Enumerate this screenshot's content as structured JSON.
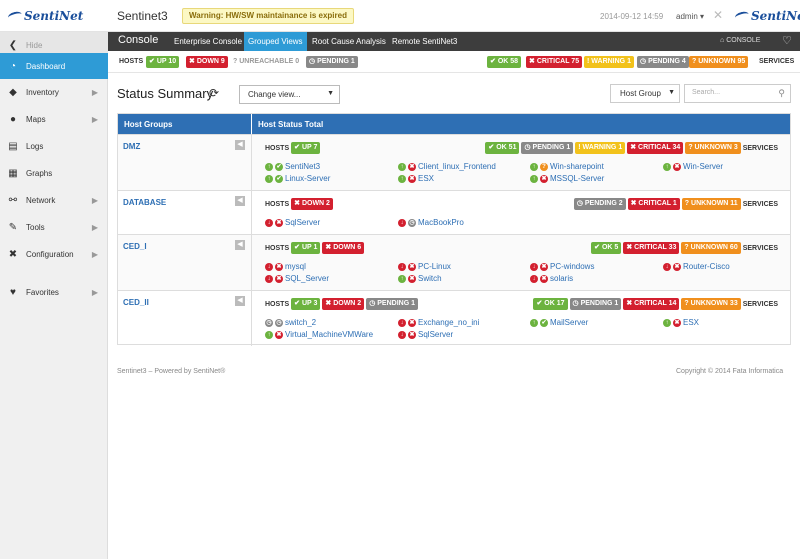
{
  "header": {
    "app_title": "Sentinet3",
    "logo_text": "SentiNet",
    "warning": "Warning: HW/SW maintainance is expired",
    "datetime": "2014-09-12 14:59",
    "user": "admin"
  },
  "sidebar": {
    "hide_label": "Hide",
    "items": [
      {
        "label": "Dashboard",
        "icon": "dashboard-icon"
      },
      {
        "label": "Inventory",
        "icon": "inventory-icon"
      },
      {
        "label": "Maps",
        "icon": "globe-icon"
      },
      {
        "label": "Logs",
        "icon": "logs-icon"
      },
      {
        "label": "Graphs",
        "icon": "graphs-icon"
      },
      {
        "label": "Network",
        "icon": "network-icon"
      },
      {
        "label": "Tools",
        "icon": "wrench-icon"
      },
      {
        "label": "Configuration",
        "icon": "configuration-icon"
      },
      {
        "label": "Favorites",
        "icon": "heart-icon"
      }
    ]
  },
  "console": {
    "title": "Console",
    "tabs": [
      "Enterprise Console",
      "Grouped Views",
      "Root Cause Analysis",
      "Remote SentiNet3"
    ],
    "active_tab": "Grouped Views",
    "breadcrumb": "CONSOLE"
  },
  "summary": {
    "hosts_label": "HOSTS",
    "up": "UP 10",
    "down": "DOWN 9",
    "unreachable": "UNREACHABLE 0",
    "pending": "PENDING 1",
    "ok": "OK 58",
    "critical": "CRITICAL 75",
    "warning": "WARNING 1",
    "svc_pending": "PENDING 4",
    "unknown": "UNKNOWN 95",
    "services_label": "SERVICES"
  },
  "main": {
    "title": "Status Summary",
    "change_view": "Change view...",
    "host_group": "Host Group",
    "search_placeholder": "Search..."
  },
  "table": {
    "col1": "Host Groups",
    "col2": "Host Status Total"
  },
  "groups": [
    {
      "name": "DMZ",
      "hosts_label": "HOSTS",
      "up": "UP 7",
      "ok": "OK 51",
      "pending": "PENDING 1",
      "warning": "WARNING 1",
      "critical": "CRITICAL 34",
      "unknown": "UNKNOWN 3",
      "services_label": "SERVICES",
      "hosts": [
        "SentiNet3",
        "Client_linux_Frontend",
        "Win-sharepoint",
        "Win-Server",
        "Linux-Server",
        "ESX",
        "MSSQL-Server"
      ]
    },
    {
      "name": "DATABASE",
      "hosts_label": "HOSTS",
      "down": "DOWN 2",
      "pending": "PENDING 2",
      "critical": "CRITICAL 1",
      "unknown": "UNKNOWN 11",
      "services_label": "SERVICES",
      "hosts": [
        "SqlServer",
        "MacBookPro"
      ]
    },
    {
      "name": "CED_I",
      "hosts_label": "HOSTS",
      "up": "UP 1",
      "down": "DOWN 6",
      "ok": "OK 5",
      "critical": "CRITICAL 33",
      "unknown": "UNKNOWN 60",
      "services_label": "SERVICES",
      "hosts": [
        "mysql",
        "PC-Linux",
        "PC-windows",
        "Router-Cisco",
        "SQL_Server",
        "Switch",
        "solaris"
      ]
    },
    {
      "name": "CED_II",
      "hosts_label": "HOSTS",
      "up": "UP 3",
      "down": "DOWN 2",
      "pending": "PENDING 1",
      "ok": "OK 17",
      "svc_pending": "PENDING 1",
      "critical": "CRITICAL 14",
      "unknown": "UNKNOWN 33",
      "services_label": "SERVICES",
      "hosts": [
        "switch_2",
        "Exchange_no_ini",
        "MailServer",
        "ESX",
        "Virtual_MachineVMWare",
        "SqlServer"
      ]
    }
  ],
  "footer": {
    "left": "Sentinet3 – Powered by SentiNet®",
    "right": "Copyright © 2014 Fata Informatica"
  }
}
